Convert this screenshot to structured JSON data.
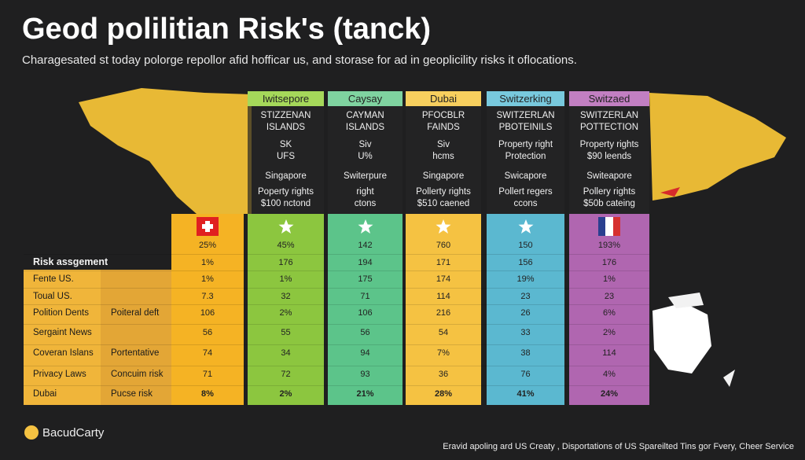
{
  "header": {
    "title": "Geod polilitian Risk's (tanck)",
    "subtitle": "Charagesated st today polorge repollor afid hofficar us, and storase for ad in geoplicility risks it oflocations."
  },
  "table": {
    "columns": [
      "Iwitsepore",
      "Caysay",
      "Dubai",
      "Switzerking",
      "Switzaed"
    ],
    "panels": [
      [
        "STIZZENAN",
        "ISLANDS",
        "SK",
        "UFS",
        "Singapore",
        "Poperty rights",
        "$100 nctond"
      ],
      [
        "CAYMAN",
        "ISLANDS",
        "Siv",
        "U%",
        "Switerpure",
        "right",
        "ctons"
      ],
      [
        "PFOCBLR",
        "FAINDS",
        "Siv",
        "hcms",
        "Singapore",
        "Pollerty rights",
        "$510 caened"
      ],
      [
        "SWITZERLAN",
        "PBOTEINILS",
        "Property right",
        "Protection",
        "Swicapore",
        "Pollert regers",
        "ccons"
      ],
      [
        "SWITZERLAN",
        "POTTECTION",
        "Property rights",
        "$90 leends",
        "Switeapore",
        "Pollery rights",
        "$50b cateing"
      ]
    ],
    "label_heading": "Risk assgement",
    "row_labels": [
      [
        "Fente US."
      ],
      [
        "Toual US."
      ],
      [
        "Polition Dents",
        "Poiteral deft"
      ],
      [
        "Sergaint News"
      ],
      [
        "Coveran Islans",
        "Portentative"
      ],
      [
        "Privacy Laws",
        "Concuim risk"
      ],
      [
        "Dubai",
        "Pucse risk"
      ]
    ],
    "rows": [
      [
        "25%",
        "45%",
        "142",
        "760",
        "150",
        "193%"
      ],
      [
        "1%",
        "176",
        "194",
        "171",
        "156",
        "176"
      ],
      [
        "1%",
        "1%",
        "175",
        "174",
        "19%",
        "1%"
      ],
      [
        "7.3",
        "32",
        "71",
        "114",
        "23",
        "23"
      ],
      [
        "106",
        "2%",
        "106",
        "216",
        "26",
        "6%"
      ],
      [
        "56",
        "55",
        "56",
        "54",
        "33",
        "2%"
      ],
      [
        "74",
        "34",
        "94",
        "7%",
        "38",
        "114"
      ],
      [
        "71",
        "72",
        "93",
        "36",
        "76",
        "4%"
      ],
      [
        "8%",
        "2%",
        "21%",
        "28%",
        "41%",
        "24%"
      ]
    ]
  },
  "footer": {
    "brand": "BacudCarty",
    "note": "Eravid apoling ard US Creaty , Disportations of US Spareilted Tins gor Fvery, Cheer Service"
  }
}
